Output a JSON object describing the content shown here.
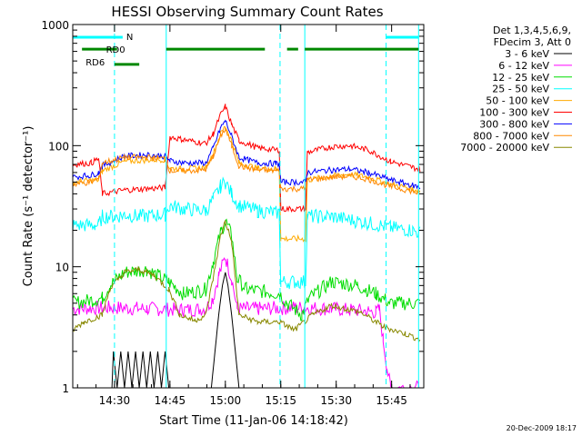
{
  "chart_data": {
    "type": "line",
    "title": "HESSI Observing Summary Count Rates",
    "xlabel": "Start Time (11-Jan-06 14:18:42)",
    "ylabel": "Count Rate (s⁻¹ detector⁻¹)",
    "yscale": "log",
    "ylim": [
      1,
      1000
    ],
    "xlim_minutes_after_start": [
      0,
      95
    ],
    "x_tick_labels": [
      "14:30",
      "14:45",
      "15:00",
      "15:15",
      "15:30",
      "15:45"
    ],
    "x_tick_minutes": [
      11.3,
      26.3,
      41.3,
      56.3,
      71.3,
      86.3
    ],
    "y_tick_labels": [
      "1",
      "10",
      "100",
      "1000"
    ],
    "y_tick_values": [
      1,
      10,
      100,
      1000
    ],
    "legend_header": [
      "Det 1,3,4,5,6,9,",
      "FDecim 3, Att 0"
    ],
    "legend_position": "right",
    "series": [
      {
        "name": "3 - 6 keV",
        "color": "#000000",
        "points": [
          [
            10.6,
            1.0
          ],
          [
            11.0,
            2.0
          ],
          [
            12.0,
            1.0
          ],
          [
            13.0,
            2.0
          ],
          [
            14.0,
            1.0
          ],
          [
            15.0,
            2.0
          ],
          [
            16.0,
            1.0
          ],
          [
            17.0,
            2.0
          ],
          [
            18.0,
            1.0
          ],
          [
            19.0,
            2.0
          ],
          [
            20.0,
            1.0
          ],
          [
            21.0,
            2.0
          ],
          [
            22.0,
            1.0
          ],
          [
            23.0,
            2.0
          ],
          [
            24.0,
            1.0
          ],
          [
            25.0,
            2.0
          ],
          [
            26.0,
            1.0
          ],
          [
            26.5,
            1.0
          ],
          [
            37.5,
            1.0
          ],
          [
            38.5,
            2.0
          ],
          [
            39.5,
            4.0
          ],
          [
            40.5,
            7.0
          ],
          [
            41.3,
            9.0
          ],
          [
            42.0,
            7.0
          ],
          [
            43.0,
            4.0
          ],
          [
            44.0,
            2.0
          ],
          [
            45.0,
            1.0
          ]
        ]
      },
      {
        "name": "6 - 12 keV",
        "color": "#ff00ff",
        "points": [
          [
            0,
            4.5
          ],
          [
            10,
            4.6
          ],
          [
            20,
            4.5
          ],
          [
            30,
            4.4
          ],
          [
            36,
            4.5
          ],
          [
            38,
            5.5
          ],
          [
            39.5,
            8.5
          ],
          [
            41.3,
            12.0
          ],
          [
            43,
            8.0
          ],
          [
            44.5,
            4.5
          ],
          [
            50,
            4.5
          ],
          [
            60,
            4.6
          ],
          [
            70,
            4.5
          ],
          [
            80,
            4.3
          ],
          [
            82,
            4.2
          ],
          [
            83,
            4.4
          ],
          [
            84,
            2.5
          ],
          [
            85,
            1.5
          ],
          [
            86,
            1.0
          ],
          [
            87,
            1.0
          ],
          [
            94,
            1.0
          ]
        ]
      },
      {
        "name": "12 - 25 keV",
        "color": "#00dd00",
        "points": [
          [
            0,
            5.0
          ],
          [
            8,
            5.5
          ],
          [
            10,
            7.0
          ],
          [
            14,
            9.0
          ],
          [
            20,
            9.5
          ],
          [
            26,
            7.5
          ],
          [
            30,
            6.0
          ],
          [
            36,
            6.5
          ],
          [
            38,
            11.0
          ],
          [
            40,
            19.0
          ],
          [
            41.3,
            24.0
          ],
          [
            43,
            18.0
          ],
          [
            44.5,
            8.0
          ],
          [
            47,
            6.5
          ],
          [
            56,
            6.0
          ],
          [
            58,
            5.0
          ],
          [
            62,
            4.0
          ],
          [
            64,
            5.5
          ],
          [
            70,
            7.5
          ],
          [
            77,
            7.0
          ],
          [
            82,
            6.0
          ],
          [
            86,
            5.0
          ],
          [
            94,
            5.0
          ]
        ]
      },
      {
        "name": "25 - 50 keV",
        "color": "#00ffff",
        "points": [
          [
            0,
            22
          ],
          [
            6,
            22
          ],
          [
            7,
            22
          ],
          [
            8,
            26
          ],
          [
            12,
            26
          ],
          [
            14,
            27
          ],
          [
            18,
            26
          ],
          [
            25,
            27
          ],
          [
            26.3,
            32
          ],
          [
            30,
            30
          ],
          [
            36,
            29
          ],
          [
            38,
            36
          ],
          [
            40,
            46
          ],
          [
            41.3,
            50
          ],
          [
            43,
            40
          ],
          [
            45,
            32
          ],
          [
            50,
            29
          ],
          [
            55,
            28
          ],
          [
            55.9,
            28
          ],
          [
            56.3,
            7.5
          ],
          [
            63,
            7.5
          ],
          [
            63.5,
            26
          ],
          [
            70,
            26
          ],
          [
            80,
            23
          ],
          [
            86,
            21
          ],
          [
            92,
            20
          ],
          [
            94,
            19
          ]
        ]
      },
      {
        "name": "50 - 100 keV",
        "color": "#ffaa00",
        "points": [
          [
            0,
            50
          ],
          [
            6,
            52
          ],
          [
            7,
            52
          ],
          [
            8,
            62
          ],
          [
            14,
            74
          ],
          [
            20,
            76
          ],
          [
            25,
            77
          ],
          [
            26.3,
            65
          ],
          [
            30,
            64
          ],
          [
            36,
            66
          ],
          [
            38,
            85
          ],
          [
            40,
            125
          ],
          [
            41.3,
            145
          ],
          [
            43,
            110
          ],
          [
            45,
            72
          ],
          [
            50,
            65
          ],
          [
            55,
            64
          ],
          [
            55.9,
            64
          ],
          [
            56.3,
            17
          ],
          [
            63,
            17
          ],
          [
            63.5,
            52
          ],
          [
            70,
            56
          ],
          [
            75,
            58
          ],
          [
            80,
            55
          ],
          [
            86,
            48
          ],
          [
            92,
            44
          ],
          [
            94,
            42
          ]
        ]
      },
      {
        "name": "100 - 300 keV",
        "color": "#ff0000",
        "points": [
          [
            0,
            70
          ],
          [
            5,
            72
          ],
          [
            7,
            78
          ],
          [
            8,
            40
          ],
          [
            14,
            43
          ],
          [
            20,
            44
          ],
          [
            25,
            45
          ],
          [
            26.3,
            118
          ],
          [
            30,
            112
          ],
          [
            36,
            104
          ],
          [
            38,
            125
          ],
          [
            40,
            180
          ],
          [
            41.3,
            210
          ],
          [
            43,
            150
          ],
          [
            45,
            110
          ],
          [
            50,
            96
          ],
          [
            55,
            92
          ],
          [
            55.9,
            92
          ],
          [
            56.3,
            30
          ],
          [
            63,
            30
          ],
          [
            63.5,
            88
          ],
          [
            70,
            98
          ],
          [
            75,
            100
          ],
          [
            80,
            92
          ],
          [
            86,
            74
          ],
          [
            92,
            66
          ],
          [
            94,
            64
          ]
        ]
      },
      {
        "name": "300 - 800 keV",
        "color": "#0000ff",
        "points": [
          [
            0,
            55
          ],
          [
            5,
            57
          ],
          [
            7,
            60
          ],
          [
            8,
            68
          ],
          [
            14,
            82
          ],
          [
            20,
            84
          ],
          [
            25,
            82
          ],
          [
            26.3,
            75
          ],
          [
            30,
            72
          ],
          [
            36,
            72
          ],
          [
            38,
            95
          ],
          [
            40,
            140
          ],
          [
            41.3,
            160
          ],
          [
            43,
            120
          ],
          [
            45,
            80
          ],
          [
            50,
            72
          ],
          [
            55,
            71
          ],
          [
            55.9,
            71
          ],
          [
            56.3,
            50
          ],
          [
            63,
            50
          ],
          [
            63.5,
            60
          ],
          [
            70,
            63
          ],
          [
            75,
            64
          ],
          [
            80,
            60
          ],
          [
            86,
            52
          ],
          [
            92,
            47
          ],
          [
            94,
            45
          ]
        ]
      },
      {
        "name": "800 - 7000 keV",
        "color": "#ff8800",
        "points": [
          [
            0,
            48
          ],
          [
            5,
            50
          ],
          [
            7,
            53
          ],
          [
            8,
            72
          ],
          [
            14,
            80
          ],
          [
            20,
            80
          ],
          [
            25,
            78
          ],
          [
            26.3,
            62
          ],
          [
            30,
            62
          ],
          [
            36,
            63
          ],
          [
            38,
            82
          ],
          [
            40,
            120
          ],
          [
            41.3,
            138
          ],
          [
            43,
            100
          ],
          [
            45,
            68
          ],
          [
            50,
            63
          ],
          [
            55,
            62
          ],
          [
            55.9,
            62
          ],
          [
            56.3,
            44
          ],
          [
            63,
            44
          ],
          [
            63.5,
            52
          ],
          [
            70,
            55
          ],
          [
            75,
            56
          ],
          [
            80,
            53
          ],
          [
            86,
            46
          ],
          [
            92,
            42
          ],
          [
            94,
            40
          ]
        ]
      },
      {
        "name": "7000 - 20000 keV",
        "color": "#888800",
        "points": [
          [
            0,
            3.0
          ],
          [
            3,
            3.5
          ],
          [
            8,
            4.0
          ],
          [
            10,
            6.5
          ],
          [
            14,
            9.0
          ],
          [
            18,
            9.5
          ],
          [
            22,
            8.5
          ],
          [
            26,
            6.5
          ],
          [
            29,
            4.0
          ],
          [
            33,
            3.6
          ],
          [
            36,
            4.0
          ],
          [
            38,
            8.0
          ],
          [
            40,
            18.0
          ],
          [
            41.3,
            24.0
          ],
          [
            43,
            16.0
          ],
          [
            45,
            4.0
          ],
          [
            50,
            3.5
          ],
          [
            56,
            3.5
          ],
          [
            60,
            3.0
          ],
          [
            65,
            4.0
          ],
          [
            70,
            4.8
          ],
          [
            78,
            4.2
          ],
          [
            84,
            3.2
          ],
          [
            90,
            2.8
          ],
          [
            94,
            2.5
          ]
        ]
      }
    ],
    "state_bars": [
      {
        "label": "N",
        "color": "#00ffff",
        "value": 1000
      },
      {
        "label": "RD0",
        "color": "#008800",
        "value": 900
      },
      {
        "label": "RD6",
        "color": "#008800",
        "value": 800
      }
    ],
    "vertical_markers_minutes": [
      0,
      11.3,
      25.3,
      56.1,
      62.8,
      84.8,
      93.6
    ],
    "footer_timestamp": "20-Dec-2009 18:17"
  }
}
